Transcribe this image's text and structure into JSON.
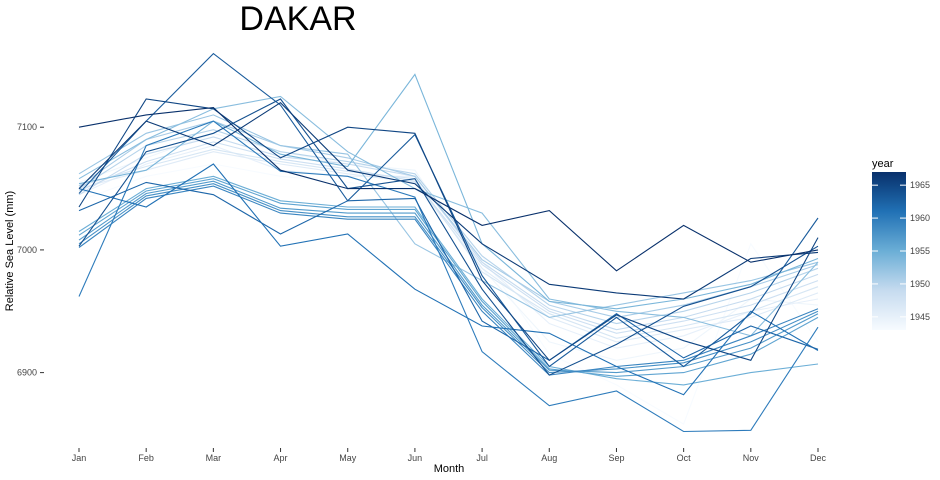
{
  "chart_data": {
    "type": "line",
    "title": "DAKAR",
    "xlabel": "Month",
    "ylabel": "Relative Sea Level (mm)",
    "categories": [
      "Jan",
      "Feb",
      "Mar",
      "Apr",
      "May",
      "Jun",
      "Jul",
      "Aug",
      "Sep",
      "Oct",
      "Nov",
      "Dec"
    ],
    "yticks": [
      6900,
      7000,
      7100
    ],
    "ylim": [
      6841,
      7167
    ],
    "legend": {
      "title": "year",
      "placement": "right",
      "ticks": [
        1945,
        1950,
        1955,
        1960,
        1965
      ],
      "range": [
        1943,
        1967
      ],
      "color_low": "#f7fbff",
      "color_high": "#08306b"
    },
    "series": [
      {
        "year": 1943,
        "values": [
          7040,
          7060,
          7070,
          7060,
          7055,
          7050,
          6995,
          6915,
          6890,
          6858,
          7005,
          6925
        ]
      },
      {
        "year": 1944,
        "values": [
          7055,
          7075,
          7095,
          7080,
          7070,
          7065,
          6985,
          6925,
          6910,
          6920,
          6960,
          6955
        ]
      },
      {
        "year": 1945,
        "values": [
          7045,
          7070,
          7085,
          7065,
          7060,
          7060,
          6990,
          6940,
          6920,
          6930,
          6950,
          6960
        ]
      },
      {
        "year": 1946,
        "values": [
          7050,
          7065,
          7080,
          7070,
          7062,
          7055,
          6985,
          6945,
          6925,
          6935,
          6945,
          6965
        ]
      },
      {
        "year": 1947,
        "values": [
          7052,
          7068,
          7082,
          7072,
          7064,
          7058,
          6982,
          6948,
          6928,
          6938,
          6950,
          6970
        ]
      },
      {
        "year": 1948,
        "values": [
          7048,
          7072,
          7088,
          7074,
          7066,
          7056,
          6988,
          6950,
          6932,
          6942,
          6955,
          6975
        ]
      },
      {
        "year": 1949,
        "values": [
          7045,
          7078,
          7092,
          7076,
          7070,
          7060,
          6990,
          6952,
          6935,
          6945,
          6960,
          6980
        ]
      },
      {
        "year": 1950,
        "values": [
          7050,
          7085,
          7098,
          7080,
          7072,
          7062,
          6995,
          6955,
          6940,
          6950,
          6965,
          6985
        ]
      },
      {
        "year": 1951,
        "values": [
          7052,
          7090,
          7105,
          7085,
          7075,
          7060,
          6992,
          6958,
          6945,
          6955,
          6970,
          6988
        ]
      },
      {
        "year": 1952,
        "values": [
          7062,
          7095,
          7110,
          7085,
          7078,
          7005,
          6975,
          6945,
          6955,
          6965,
          6975,
          6990
        ]
      },
      {
        "year": 1953,
        "values": [
          7058,
          7090,
          7115,
          7125,
          7080,
          7050,
          7030,
          6960,
          6950,
          6945,
          6930,
          6990
        ]
      },
      {
        "year": 1954,
        "values": [
          7054,
          7065,
          7105,
          7078,
          7068,
          7143,
          7005,
          6958,
          6952,
          6960,
          6972,
          6993
        ]
      },
      {
        "year": 1955,
        "values": [
          7015,
          7050,
          7060,
          7040,
          7035,
          7035,
          6960,
          6905,
          6895,
          6890,
          6900,
          6907
        ]
      },
      {
        "year": 1956,
        "values": [
          7012,
          7048,
          7058,
          7038,
          7033,
          7033,
          6958,
          6903,
          6897,
          6900,
          6915,
          6945
        ]
      },
      {
        "year": 1957,
        "values": [
          7008,
          7046,
          7056,
          7034,
          7030,
          7030,
          6955,
          6902,
          6900,
          6905,
          6920,
          6948
        ]
      },
      {
        "year": 1958,
        "values": [
          7005,
          7044,
          7054,
          7032,
          7027,
          7027,
          6953,
          6900,
          6903,
          6908,
          6925,
          6950
        ]
      },
      {
        "year": 1959,
        "values": [
          7002,
          7042,
          7052,
          7030,
          7025,
          7025,
          6950,
          6898,
          6905,
          6910,
          6930,
          6952
        ]
      },
      {
        "year": 1960,
        "values": [
          6962,
          7085,
          7105,
          7064,
          7060,
          7043,
          6917,
          6873,
          6885,
          6852,
          6853,
          6937
        ]
      },
      {
        "year": 1961,
        "values": [
          7050,
          7035,
          7070,
          7003,
          7013,
          6968,
          6938,
          6932,
          6905,
          6882,
          6950,
          6918
        ]
      },
      {
        "year": 1962,
        "values": [
          7032,
          7055,
          7045,
          7013,
          7040,
          7042,
          6942,
          6910,
          6948,
          6912,
          6938,
          6919
        ]
      },
      {
        "year": 1963,
        "values": [
          7046,
          7105,
          7160,
          7118,
          7040,
          7094,
          6979,
          6905,
          6945,
          6905,
          6948,
          7026
        ]
      },
      {
        "year": 1964,
        "values": [
          7003,
          7080,
          7095,
          7123,
          7050,
          7058,
          6968,
          6898,
          6923,
          6954,
          6970,
          7003
        ]
      },
      {
        "year": 1965,
        "values": [
          7035,
          7123,
          7115,
          7075,
          7100,
          7095,
          6975,
          6910,
          6947,
          6926,
          6910,
          7010
        ]
      },
      {
        "year": 1966,
        "values": [
          7050,
          7105,
          7085,
          7120,
          7065,
          7054,
          7005,
          6972,
          6965,
          6960,
          6993,
          6998
        ]
      },
      {
        "year": 1967,
        "values": [
          7100,
          7110,
          7116,
          7065,
          7050,
          7050,
          7020,
          7032,
          6983,
          7020,
          6990,
          7000
        ]
      }
    ]
  }
}
